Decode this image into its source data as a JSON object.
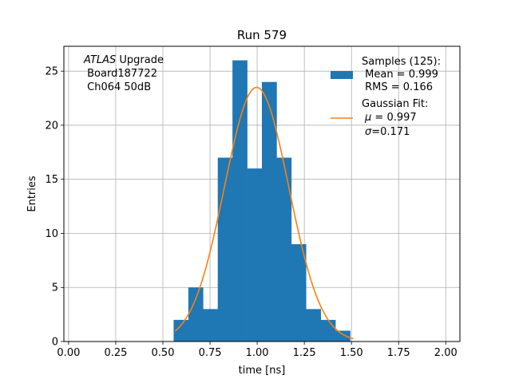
{
  "chart_data": {
    "type": "bar",
    "title": "Run 579",
    "xlabel": "time [ns]",
    "ylabel": "Entries",
    "xlim": [
      -0.025,
      2.075
    ],
    "ylim": [
      0,
      27.3
    ],
    "grid": true,
    "legend_placement": "top-right",
    "x_ticks": [
      0.0,
      0.25,
      0.5,
      0.75,
      1.0,
      1.25,
      1.5,
      1.75,
      2.0
    ],
    "x_tick_labels": [
      "0.00",
      "0.25",
      "0.50",
      "0.75",
      "1.00",
      "1.25",
      "1.50",
      "1.75",
      "2.00"
    ],
    "y_ticks": [
      0,
      5,
      10,
      15,
      20,
      25
    ],
    "y_tick_labels": [
      "0",
      "5",
      "10",
      "15",
      "20",
      "25"
    ],
    "histogram": {
      "bin_width": 0.078,
      "bin_left_edges": [
        0.557,
        0.635,
        0.713,
        0.791,
        0.869,
        0.947,
        1.025,
        1.103,
        1.181,
        1.259,
        1.337,
        1.415
      ],
      "counts": [
        2,
        5,
        3,
        17,
        26,
        16,
        24,
        17,
        9,
        3,
        2,
        1
      ],
      "color": "#1f77b4"
    },
    "fit": {
      "type": "gaussian",
      "mu": 0.997,
      "sigma": 0.171,
      "peak": 23.5,
      "x_range": [
        0.565,
        1.51
      ],
      "color": "#ff7f0e"
    },
    "annotation": {
      "line1_italic": "ATLAS",
      "line1_rest": " Upgrade",
      "line2": " Board187722",
      "line3": " Ch064 50dB"
    },
    "legend": {
      "samples_line1": "Samples (125):",
      "samples_line2": " Mean = 0.999",
      "samples_line3": " RMS = 0.166",
      "fit_line1": "Gaussian Fit:",
      "fit_mu_symbol": "μ",
      "fit_mu_text": " = 0.997",
      "fit_sigma_symbol": "σ",
      "fit_sigma_text": "=0.171"
    }
  }
}
